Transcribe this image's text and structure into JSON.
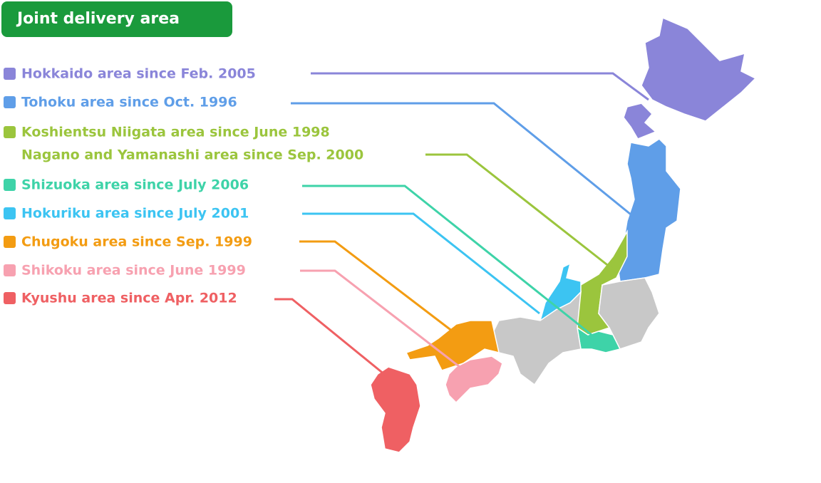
{
  "header": {
    "title": "Joint delivery area"
  },
  "legend": {
    "items": [
      {
        "lines": [
          "Hokkaido area since Feb. 2005"
        ]
      },
      {
        "lines": [
          "Tohoku area since Oct. 1996"
        ]
      },
      {
        "lines": [
          "Koshientsu Niigata area since June 1998",
          "Nagano and Yamanashi area since Sep. 2000"
        ]
      },
      {
        "lines": [
          "Shizuoka area since July 2006"
        ]
      },
      {
        "lines": [
          "Hokuriku area since July 2001"
        ]
      },
      {
        "lines": [
          "Chugoku area since Sep. 1999"
        ]
      },
      {
        "lines": [
          "Shikoku area since June 1999"
        ]
      },
      {
        "lines": [
          "Kyushu area since Apr. 2012"
        ]
      }
    ]
  }
}
